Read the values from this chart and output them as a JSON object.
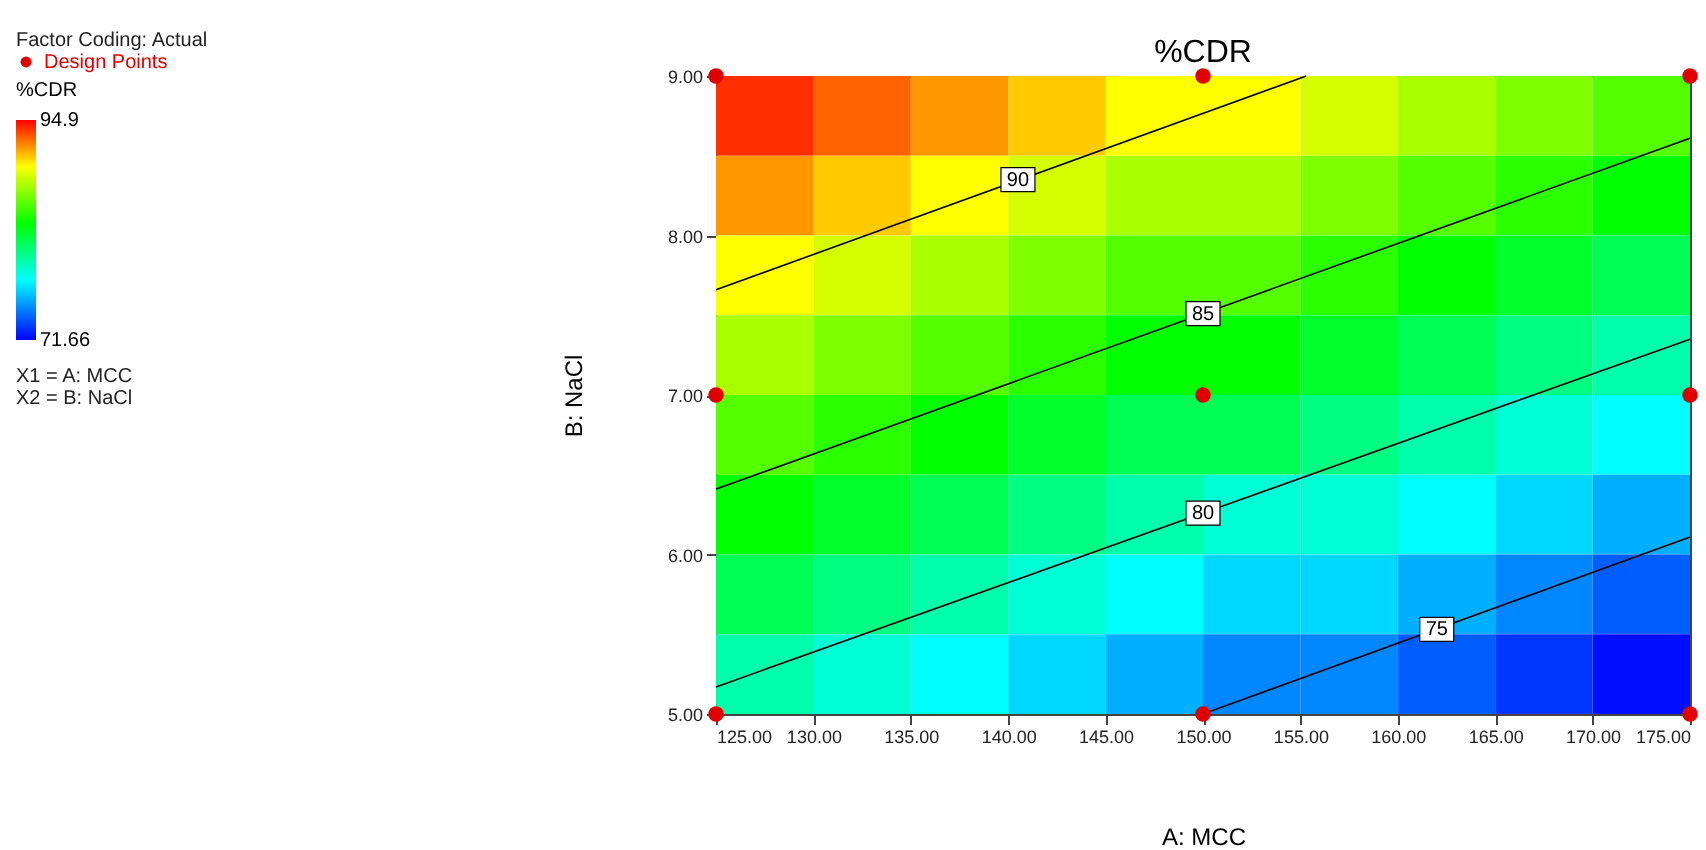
{
  "chart_data": {
    "type": "heatmap",
    "title": "%CDR",
    "xlabel": "A: MCC",
    "ylabel": "B: NaCl",
    "legend_title": "%CDR",
    "xlim": [
      125,
      175
    ],
    "ylim": [
      5,
      9
    ],
    "xticks": [
      {
        "value": 125,
        "label": "125.00"
      },
      {
        "value": 130,
        "label": "130.00"
      },
      {
        "value": 135,
        "label": "135.00"
      },
      {
        "value": 140,
        "label": "140.00"
      },
      {
        "value": 145,
        "label": "145.00"
      },
      {
        "value": 150,
        "label": "150.00"
      },
      {
        "value": 155,
        "label": "155.00"
      },
      {
        "value": 160,
        "label": "160.00"
      },
      {
        "value": 165,
        "label": "165.00"
      },
      {
        "value": 170,
        "label": "170.00"
      },
      {
        "value": 175,
        "label": "175.00"
      }
    ],
    "yticks": [
      {
        "value": 5,
        "label": "5.00"
      },
      {
        "value": 6,
        "label": "6.00"
      },
      {
        "value": 7,
        "label": "7.00"
      },
      {
        "value": 8,
        "label": "8.00"
      },
      {
        "value": 9,
        "label": "9.00"
      }
    ],
    "clim": [
      71.66,
      94.9
    ],
    "cticks": [
      71.66,
      94.9
    ],
    "cells": [
      [
        94,
        93,
        92,
        91,
        90,
        90,
        89,
        88,
        87,
        86
      ],
      [
        92,
        91,
        90,
        89,
        88,
        88,
        87,
        86,
        85,
        84
      ],
      [
        90,
        89,
        88,
        87,
        86,
        86,
        85,
        84,
        83,
        82
      ],
      [
        88,
        87,
        86,
        85,
        84,
        84,
        83,
        82,
        81,
        80
      ],
      [
        86,
        85,
        84,
        83,
        82,
        82,
        81,
        80,
        79,
        78
      ],
      [
        84,
        83,
        82,
        81,
        80,
        79,
        79,
        78,
        77,
        76
      ],
      [
        82,
        81,
        80,
        79,
        78,
        77,
        77,
        76,
        75,
        74
      ],
      [
        80,
        79,
        78,
        77,
        76,
        75,
        75,
        74,
        73,
        72
      ]
    ],
    "series": [
      {
        "type": "line",
        "color": "#000000",
        "x": [
          125,
          155.3
        ],
        "values": [
          7.66,
          9
        ]
      },
      {
        "type": "line",
        "color": "#000000",
        "x": [
          125,
          175
        ],
        "values": [
          6.41,
          8.61
        ]
      },
      {
        "type": "line",
        "color": "#000000",
        "x": [
          125,
          175
        ],
        "values": [
          5.17,
          7.35
        ]
      },
      {
        "type": "line",
        "color": "#000000",
        "x": [
          150,
          175
        ],
        "values": [
          5,
          6.11
        ]
      },
      {
        "type": "scatter",
        "name": "Design Points",
        "color": "#e00000",
        "marker": "circle",
        "x": [
          125,
          150,
          175,
          125,
          150,
          175,
          125,
          150,
          175
        ],
        "values": [
          9,
          9,
          9,
          7,
          7,
          7,
          5,
          5,
          5
        ]
      }
    ],
    "legend": "top left",
    "grid": false,
    "annotations": [
      "Factor Coding: Actual",
      {
        "text": "90",
        "x": 140.5,
        "y": 8.35
      },
      {
        "text": "85",
        "x": 150,
        "y": 7.51
      },
      {
        "text": "80",
        "x": 150,
        "y": 6.26
      },
      {
        "text": "75",
        "x": 162,
        "y": 5.53
      },
      "X1 = A: MCC",
      "X2 = B: NaCl"
    ]
  }
}
